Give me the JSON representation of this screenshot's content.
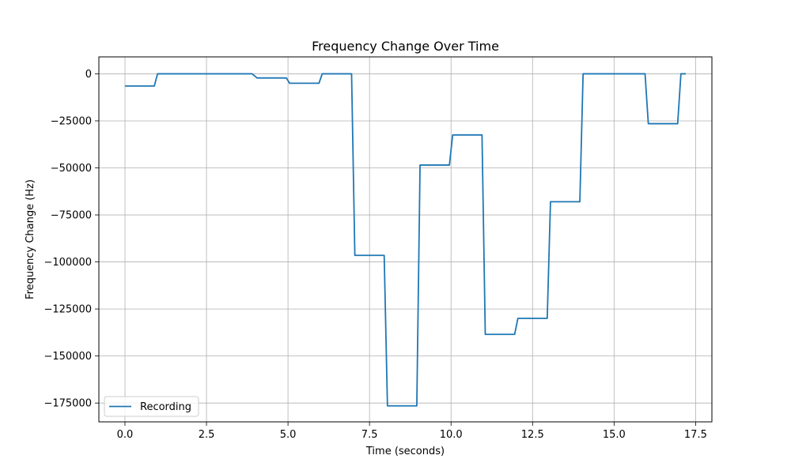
{
  "chart_data": {
    "type": "line",
    "title": "Frequency Change Over Time",
    "xlabel": "Time (seconds)",
    "ylabel": "Frequency Change (Hz)",
    "xlim": [
      -0.8,
      18.0
    ],
    "ylim": [
      -185000,
      9000
    ],
    "xticks": [
      0.0,
      2.5,
      5.0,
      7.5,
      10.0,
      12.5,
      15.0,
      17.5
    ],
    "xtick_labels": [
      "0.0",
      "2.5",
      "5.0",
      "7.5",
      "10.0",
      "12.5",
      "15.0",
      "17.5"
    ],
    "yticks": [
      0,
      -25000,
      -50000,
      -75000,
      -100000,
      -125000,
      -150000,
      -175000
    ],
    "ytick_labels": [
      "0",
      "−25000",
      "−50000",
      "−75000",
      "−100000",
      "−125000",
      "−150000",
      "−175000"
    ],
    "grid": true,
    "legend_position": "lower-left",
    "series": [
      {
        "name": "Recording",
        "color": "#1f77b4",
        "x": [
          0.0,
          0.9,
          1.0,
          3.9,
          4.05,
          4.95,
          5.05,
          5.95,
          6.05,
          6.95,
          7.05,
          7.95,
          8.05,
          8.95,
          9.05,
          9.95,
          10.05,
          10.95,
          11.05,
          11.95,
          12.05,
          12.95,
          13.05,
          13.95,
          14.05,
          15.95,
          16.05,
          16.95,
          17.05,
          17.2
        ],
        "y": [
          -6500,
          -6500,
          0,
          0,
          -2200,
          -2200,
          -5000,
          -5000,
          0,
          0,
          -96500,
          -96500,
          -176500,
          -176500,
          -48500,
          -48500,
          -32500,
          -32500,
          -138500,
          -138500,
          -130000,
          -130000,
          -68000,
          -68000,
          0,
          0,
          -26500,
          -26500,
          0,
          0
        ]
      }
    ]
  }
}
